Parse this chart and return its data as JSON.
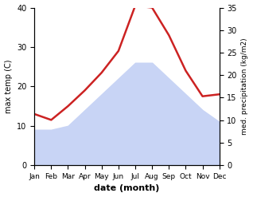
{
  "months": [
    "Jan",
    "Feb",
    "Mar",
    "Apr",
    "May",
    "Jun",
    "Jul",
    "Aug",
    "Sep",
    "Oct",
    "Nov",
    "Dec"
  ],
  "max_temp": [
    13.0,
    11.5,
    15.0,
    19.0,
    23.5,
    29.0,
    40.5,
    40.0,
    33.0,
    24.0,
    17.5,
    18.0
  ],
  "precipitation": [
    9,
    9,
    10,
    14,
    18,
    22,
    26,
    26,
    22,
    18,
    14,
    11
  ],
  "temp_color": "#cc2222",
  "precip_fill_color": "#c8d4f5",
  "temp_ylim": [
    0,
    40
  ],
  "temp_yticks": [
    0,
    10,
    20,
    30,
    40
  ],
  "right_ylim": [
    0,
    35
  ],
  "right_yticks": [
    0,
    5,
    10,
    15,
    20,
    25,
    30,
    35
  ],
  "ylabel_left": "max temp (C)",
  "ylabel_right": "med. precipitation (kg/m2)",
  "xlabel": "date (month)",
  "background_color": "#ffffff"
}
